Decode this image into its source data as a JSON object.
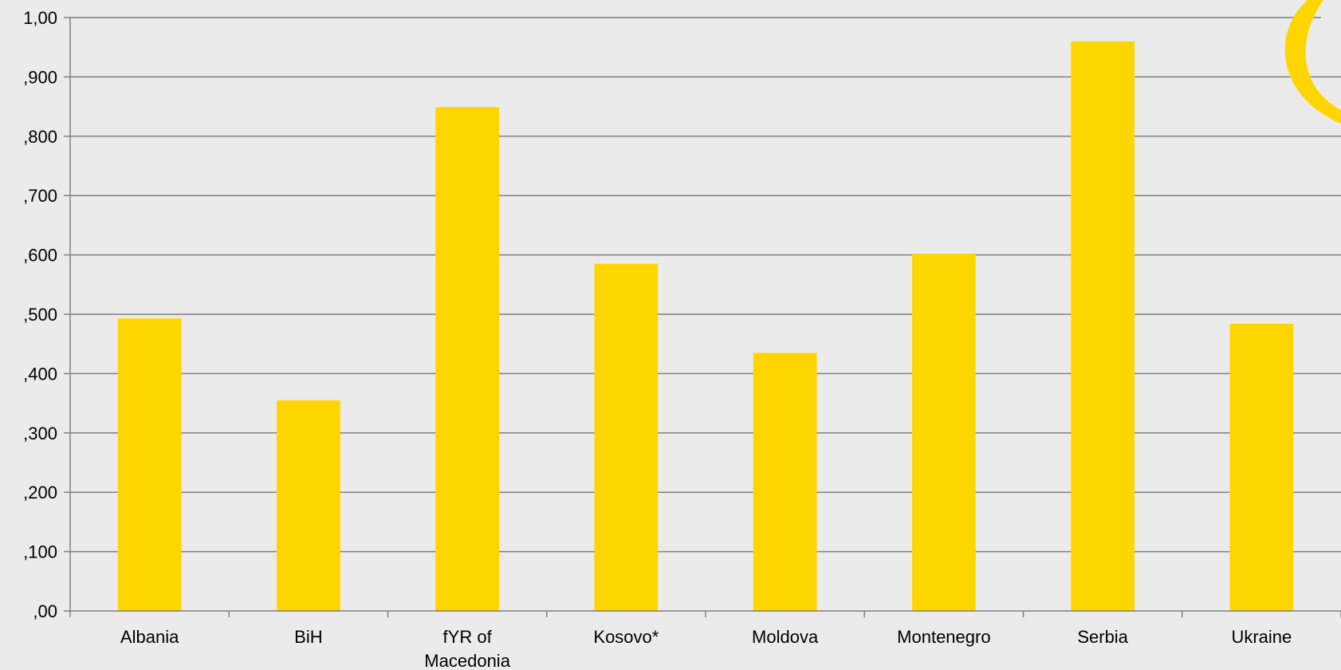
{
  "chart_data": {
    "type": "bar",
    "categories": [
      [
        "Albania"
      ],
      [
        "BiH"
      ],
      [
        "fYR of",
        "Macedonia"
      ],
      [
        "Kosovo*"
      ],
      [
        "Moldova"
      ],
      [
        "Montenegro"
      ],
      [
        "Serbia"
      ],
      [
        "Ukraine"
      ]
    ],
    "values": [
      0.493,
      0.355,
      0.849,
      0.585,
      0.435,
      0.602,
      0.96,
      0.484
    ],
    "ylim": [
      0,
      1
    ],
    "yticks": [
      {
        "value": 0.0,
        "label": ",00"
      },
      {
        "value": 0.1,
        "label": ",100"
      },
      {
        "value": 0.2,
        "label": ",200"
      },
      {
        "value": 0.3,
        "label": ",300"
      },
      {
        "value": 0.4,
        "label": ",400"
      },
      {
        "value": 0.5,
        "label": ",500"
      },
      {
        "value": 0.6,
        "label": ",600"
      },
      {
        "value": 0.7,
        "label": ",700"
      },
      {
        "value": 0.8,
        "label": ",800"
      },
      {
        "value": 0.9,
        "label": ",900"
      },
      {
        "value": 1.0,
        "label": "1,00"
      }
    ],
    "grid": true,
    "title": "",
    "xlabel": "",
    "ylabel": "",
    "colors": {
      "bar": "#ffd500",
      "gridline": "#808080",
      "axis": "#808080",
      "background": "#ebebeb",
      "logo": "#ffd500"
    }
  },
  "decor": {
    "logo_icon": "yellow-crescent-logo"
  }
}
